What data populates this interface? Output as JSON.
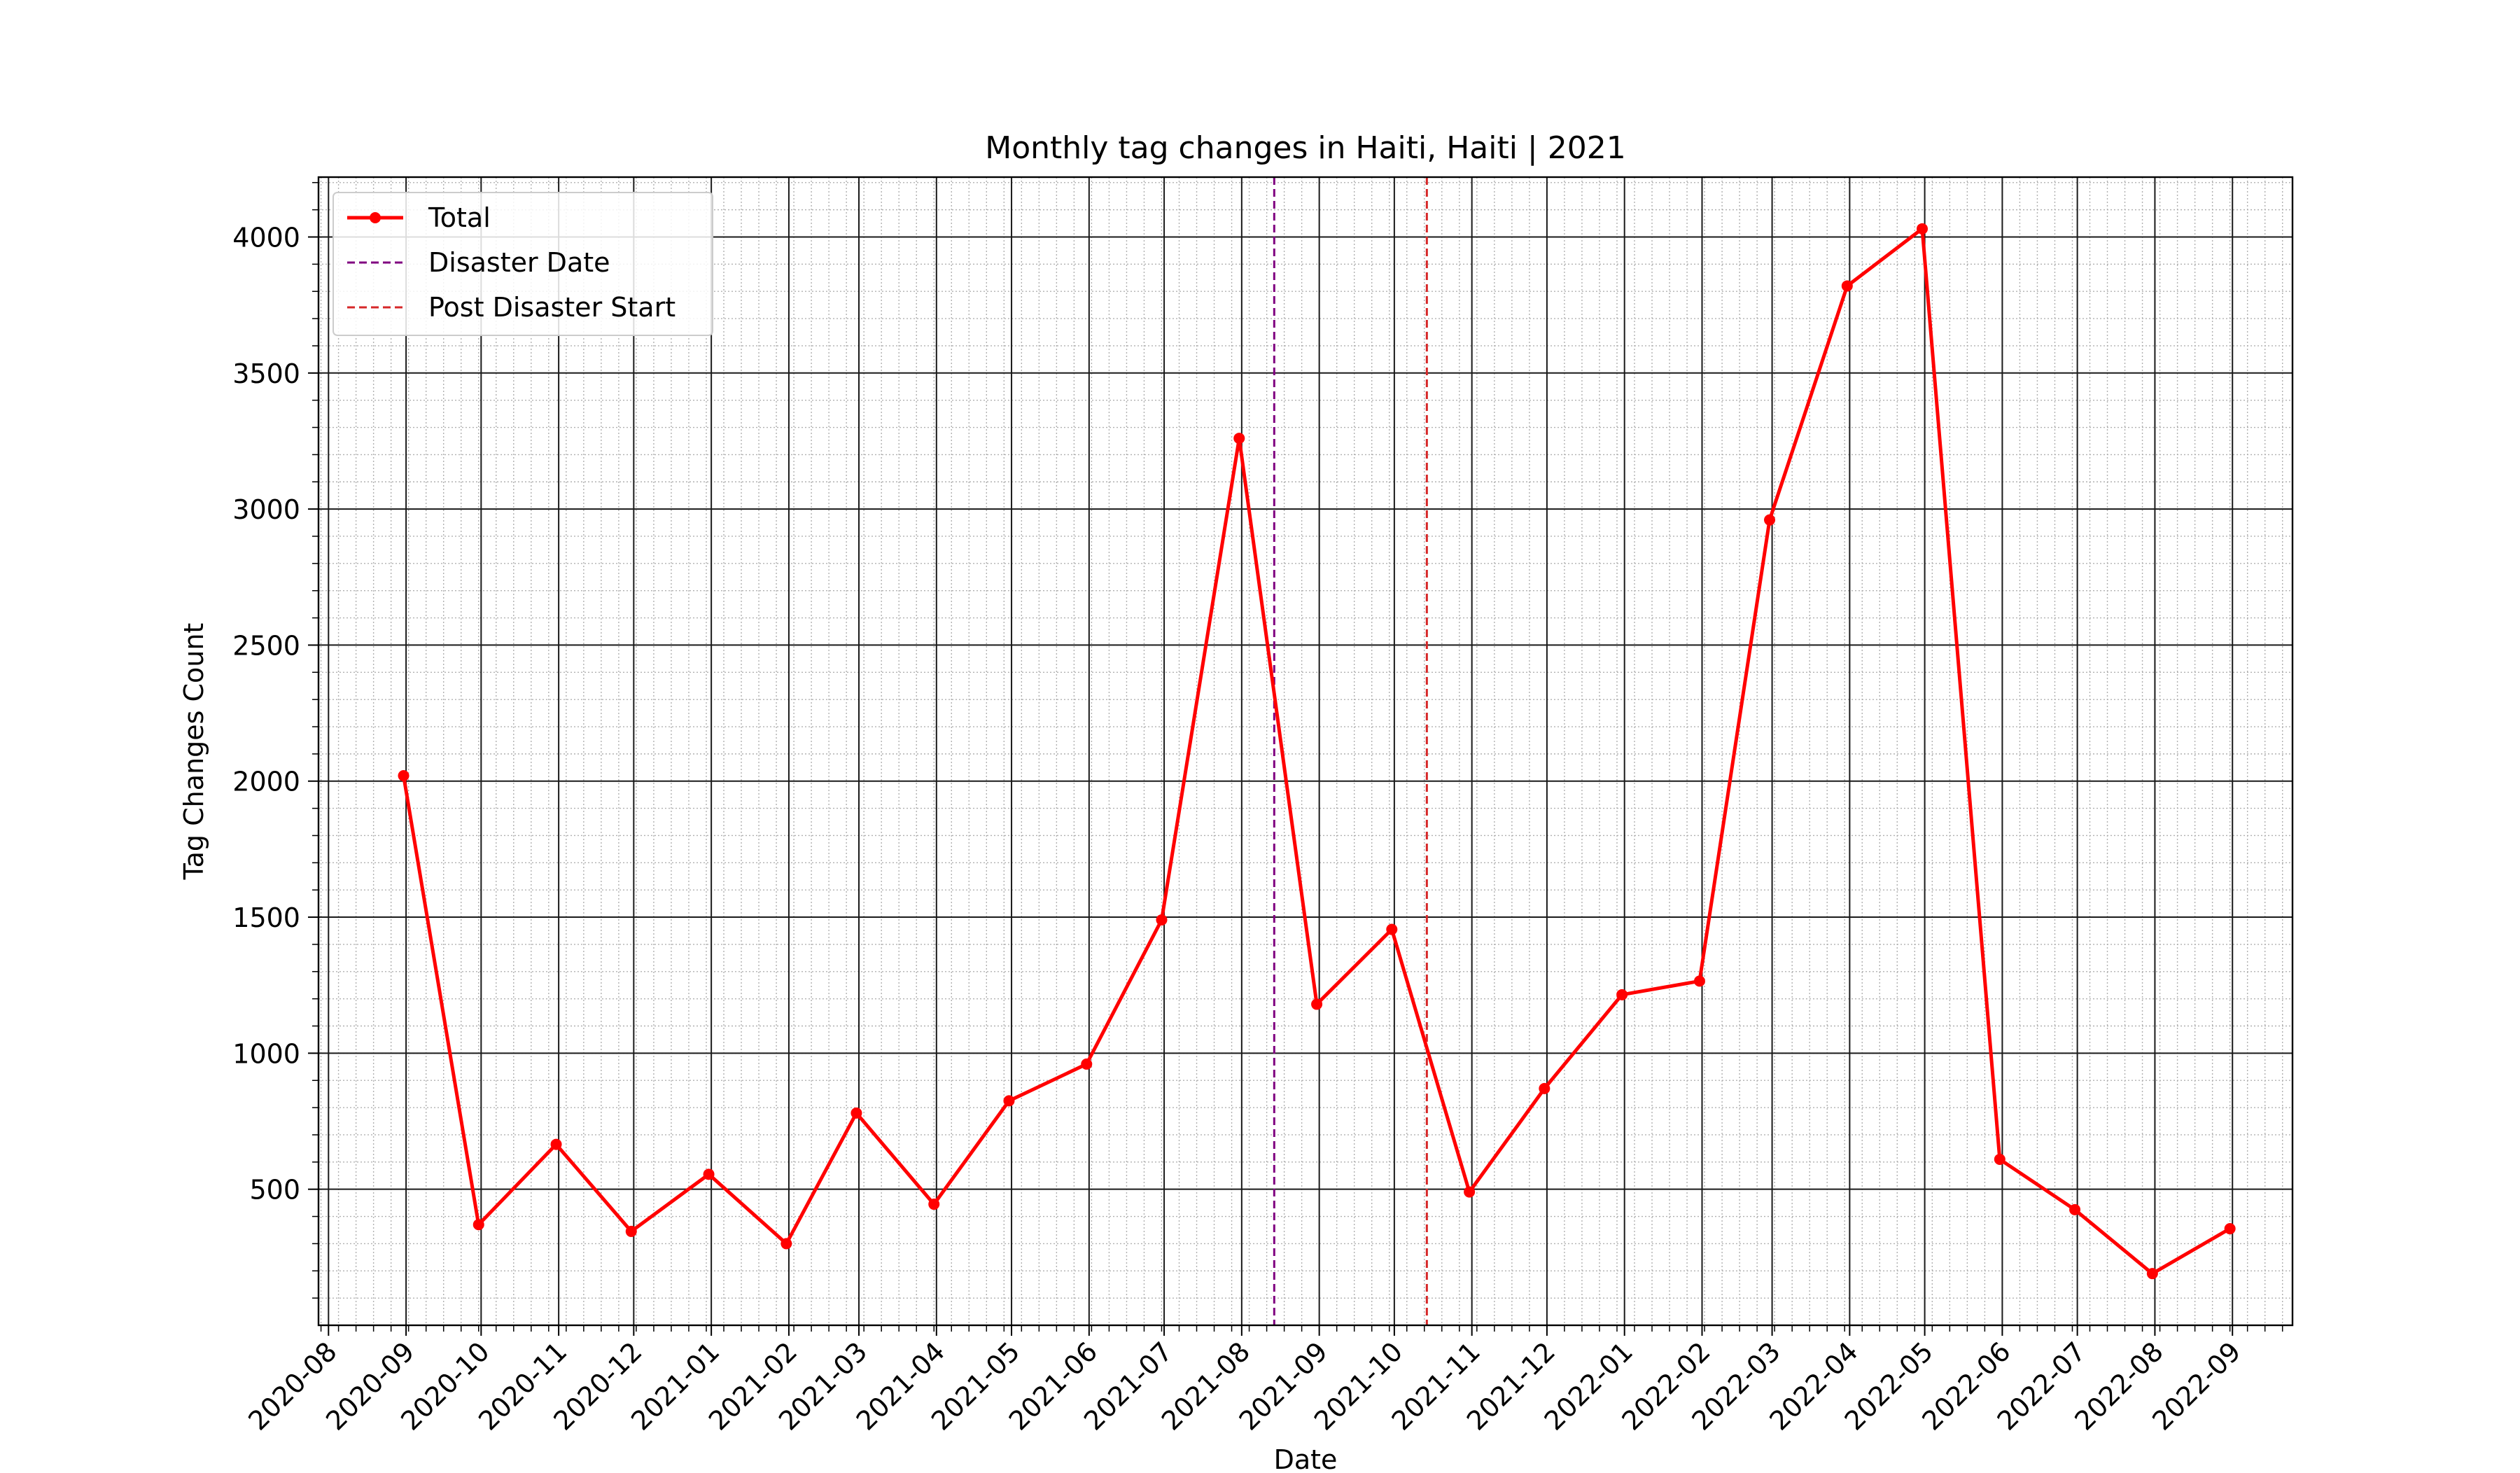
{
  "chart_data": {
    "type": "line",
    "title": "Monthly tag changes in Haiti, Haiti | 2021",
    "xlabel": "Date",
    "ylabel": "Tag Changes Count",
    "x_ticks": [
      "2020-08",
      "2020-09",
      "2020-10",
      "2020-11",
      "2020-12",
      "2021-01",
      "2021-02",
      "2021-03",
      "2021-04",
      "2021-05",
      "2021-06",
      "2021-07",
      "2021-08",
      "2021-09",
      "2021-10",
      "2021-11",
      "2021-12",
      "2022-01",
      "2022-02",
      "2022-03",
      "2022-04",
      "2022-05",
      "2022-06",
      "2022-07",
      "2022-08",
      "2022-09"
    ],
    "y_ticks": [
      500,
      1000,
      1500,
      2000,
      2500,
      3000,
      3500,
      4000
    ],
    "ylim": [
      0,
      4220
    ],
    "xlim": [
      "2020-07-28",
      "2022-09-25"
    ],
    "grid": true,
    "legend_position": "top-left",
    "series": [
      {
        "name": "Total",
        "color": "#ff0000",
        "x": [
          "2020-08-31",
          "2020-09-30",
          "2020-10-31",
          "2020-11-30",
          "2020-12-31",
          "2021-01-31",
          "2021-02-28",
          "2021-03-31",
          "2021-04-30",
          "2021-05-31",
          "2021-06-30",
          "2021-07-31",
          "2021-08-31",
          "2021-09-30",
          "2021-10-31",
          "2021-11-30",
          "2021-12-31",
          "2022-01-31",
          "2022-02-28",
          "2022-03-31",
          "2022-04-30",
          "2022-05-31",
          "2022-06-30",
          "2022-07-31",
          "2022-08-31"
        ],
        "values": [
          2020,
          370,
          665,
          345,
          555,
          300,
          780,
          445,
          825,
          960,
          1490,
          3260,
          1180,
          1455,
          490,
          870,
          1215,
          1265,
          2960,
          3820,
          4030,
          610,
          425,
          190,
          355
        ]
      }
    ],
    "vlines": [
      {
        "name": "Disaster Date",
        "x": "2021-08-14",
        "color": "#800080"
      },
      {
        "name": "Post Disaster Start",
        "x": "2021-10-14",
        "color": "#d62728"
      }
    ]
  }
}
